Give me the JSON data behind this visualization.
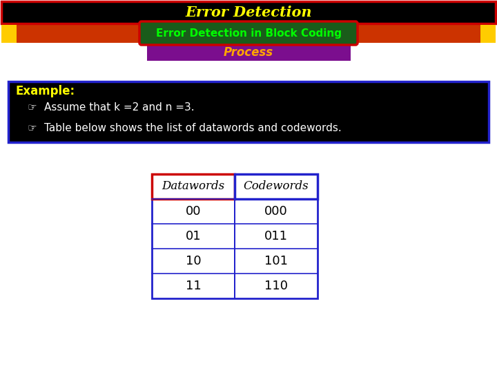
{
  "title": "Error Detection",
  "subtitle1": "Error Detection in Block Coding",
  "subtitle2": "Process",
  "title_bg": "#000000",
  "title_fg": "#FFFF00",
  "title_border": "#CC0000",
  "subtitle1_bg": "#1a5c1a",
  "subtitle1_fg": "#00FF00",
  "subtitle1_border": "#CC0000",
  "subtitle2_bg": "#7B0E8E",
  "subtitle2_fg": "#FFA500",
  "example_bg": "#000000",
  "example_border": "#2222CC",
  "example_title": "Example:",
  "example_title_color": "#FFFF00",
  "bullet1": "Assume that k =2 and n =3.",
  "bullet2": "Table below shows the list of datawords and codewords.",
  "bullet_color": "#FFFFFF",
  "datawords": [
    "00",
    "01",
    "10",
    "11"
  ],
  "codewords": [
    "000",
    "011",
    "101",
    "110"
  ],
  "table_header1": "Datawords",
  "table_header2": "Codewords",
  "table_header1_border": "#CC0000",
  "table_header2_border": "#2222CC",
  "table_border": "#2222CC",
  "orange_bar_color": "#CC3300",
  "yellow_box_color": "#FFCC00",
  "bg_color": "#FFFFFF"
}
